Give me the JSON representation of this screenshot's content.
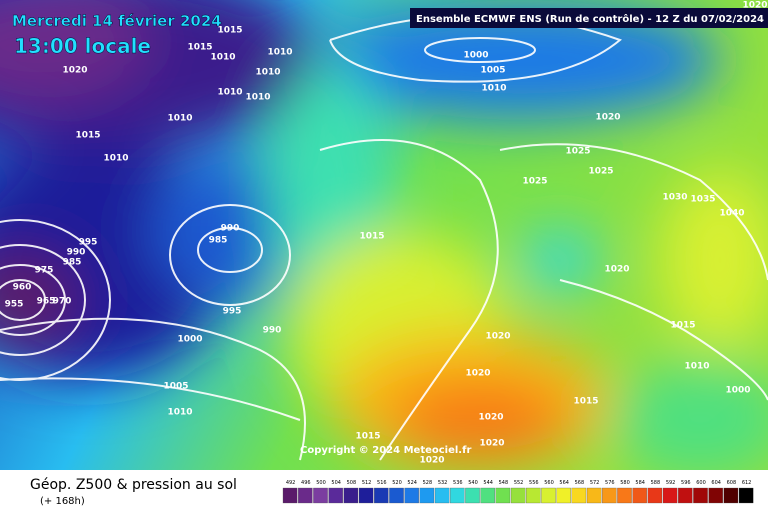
{
  "header": {
    "date": "Mercredi 14 février 2024",
    "time": "13:00 locale",
    "model": "Ensemble ECMWF ENS  (Run de contrôle)  -  12 Z du 07/02/2024",
    "copyright": "Copyright © 2024 Meteociel.fr"
  },
  "isobar_labels": [
    "1015",
    "1015",
    "1010",
    "1010",
    "1010",
    "1020",
    "1010",
    "1010",
    "1010",
    "1015",
    "1010",
    "1000",
    "1005",
    "1010",
    "1020",
    "1025",
    "1025",
    "1025",
    "1030",
    "1035",
    "1040",
    "990",
    "985",
    "995",
    "990",
    "985",
    "975",
    "960",
    "955",
    "965",
    "970",
    "1015",
    "1020",
    "995",
    "990",
    "1000",
    "1015",
    "1020",
    "1020",
    "1010",
    "1005",
    "1000",
    "1015",
    "1010",
    "1020",
    "1015",
    "1020",
    "1020",
    "1020"
  ],
  "legend": {
    "title": "Géop. Z500 & pression au sol",
    "subtitle": "(+ 168h)",
    "scale": [
      {
        "value": 492,
        "color": "#5a1a6a"
      },
      {
        "value": 496,
        "color": "#6a2a8a"
      },
      {
        "value": 500,
        "color": "#7b3da0"
      },
      {
        "value": 504,
        "color": "#5a2a9a"
      },
      {
        "value": 508,
        "color": "#3a1e8c"
      },
      {
        "value": 512,
        "color": "#1e1e9a"
      },
      {
        "value": 516,
        "color": "#1a3ab4"
      },
      {
        "value": 520,
        "color": "#1a5ad0"
      },
      {
        "value": 524,
        "color": "#1e7ae6"
      },
      {
        "value": 528,
        "color": "#1e9af0"
      },
      {
        "value": 532,
        "color": "#28bdf0"
      },
      {
        "value": 536,
        "color": "#30d8e0"
      },
      {
        "value": 540,
        "color": "#3ce0b0"
      },
      {
        "value": 544,
        "color": "#50e080"
      },
      {
        "value": 548,
        "color": "#70e050"
      },
      {
        "value": 552,
        "color": "#96e03c"
      },
      {
        "value": 556,
        "color": "#b8e832"
      },
      {
        "value": 560,
        "color": "#d8f030"
      },
      {
        "value": 564,
        "color": "#f0f028"
      },
      {
        "value": 568,
        "color": "#f8d820"
      },
      {
        "value": 572,
        "color": "#f8b818"
      },
      {
        "value": 576,
        "color": "#f89818"
      },
      {
        "value": 580,
        "color": "#f87818"
      },
      {
        "value": 584,
        "color": "#f05818"
      },
      {
        "value": 588,
        "color": "#e83818"
      },
      {
        "value": 592,
        "color": "#d81818"
      },
      {
        "value": 596,
        "color": "#c01010"
      },
      {
        "value": 600,
        "color": "#a00808"
      },
      {
        "value": 604,
        "color": "#800404"
      },
      {
        "value": 608,
        "color": "#500000"
      },
      {
        "value": 612,
        "color": "#000000"
      }
    ]
  }
}
